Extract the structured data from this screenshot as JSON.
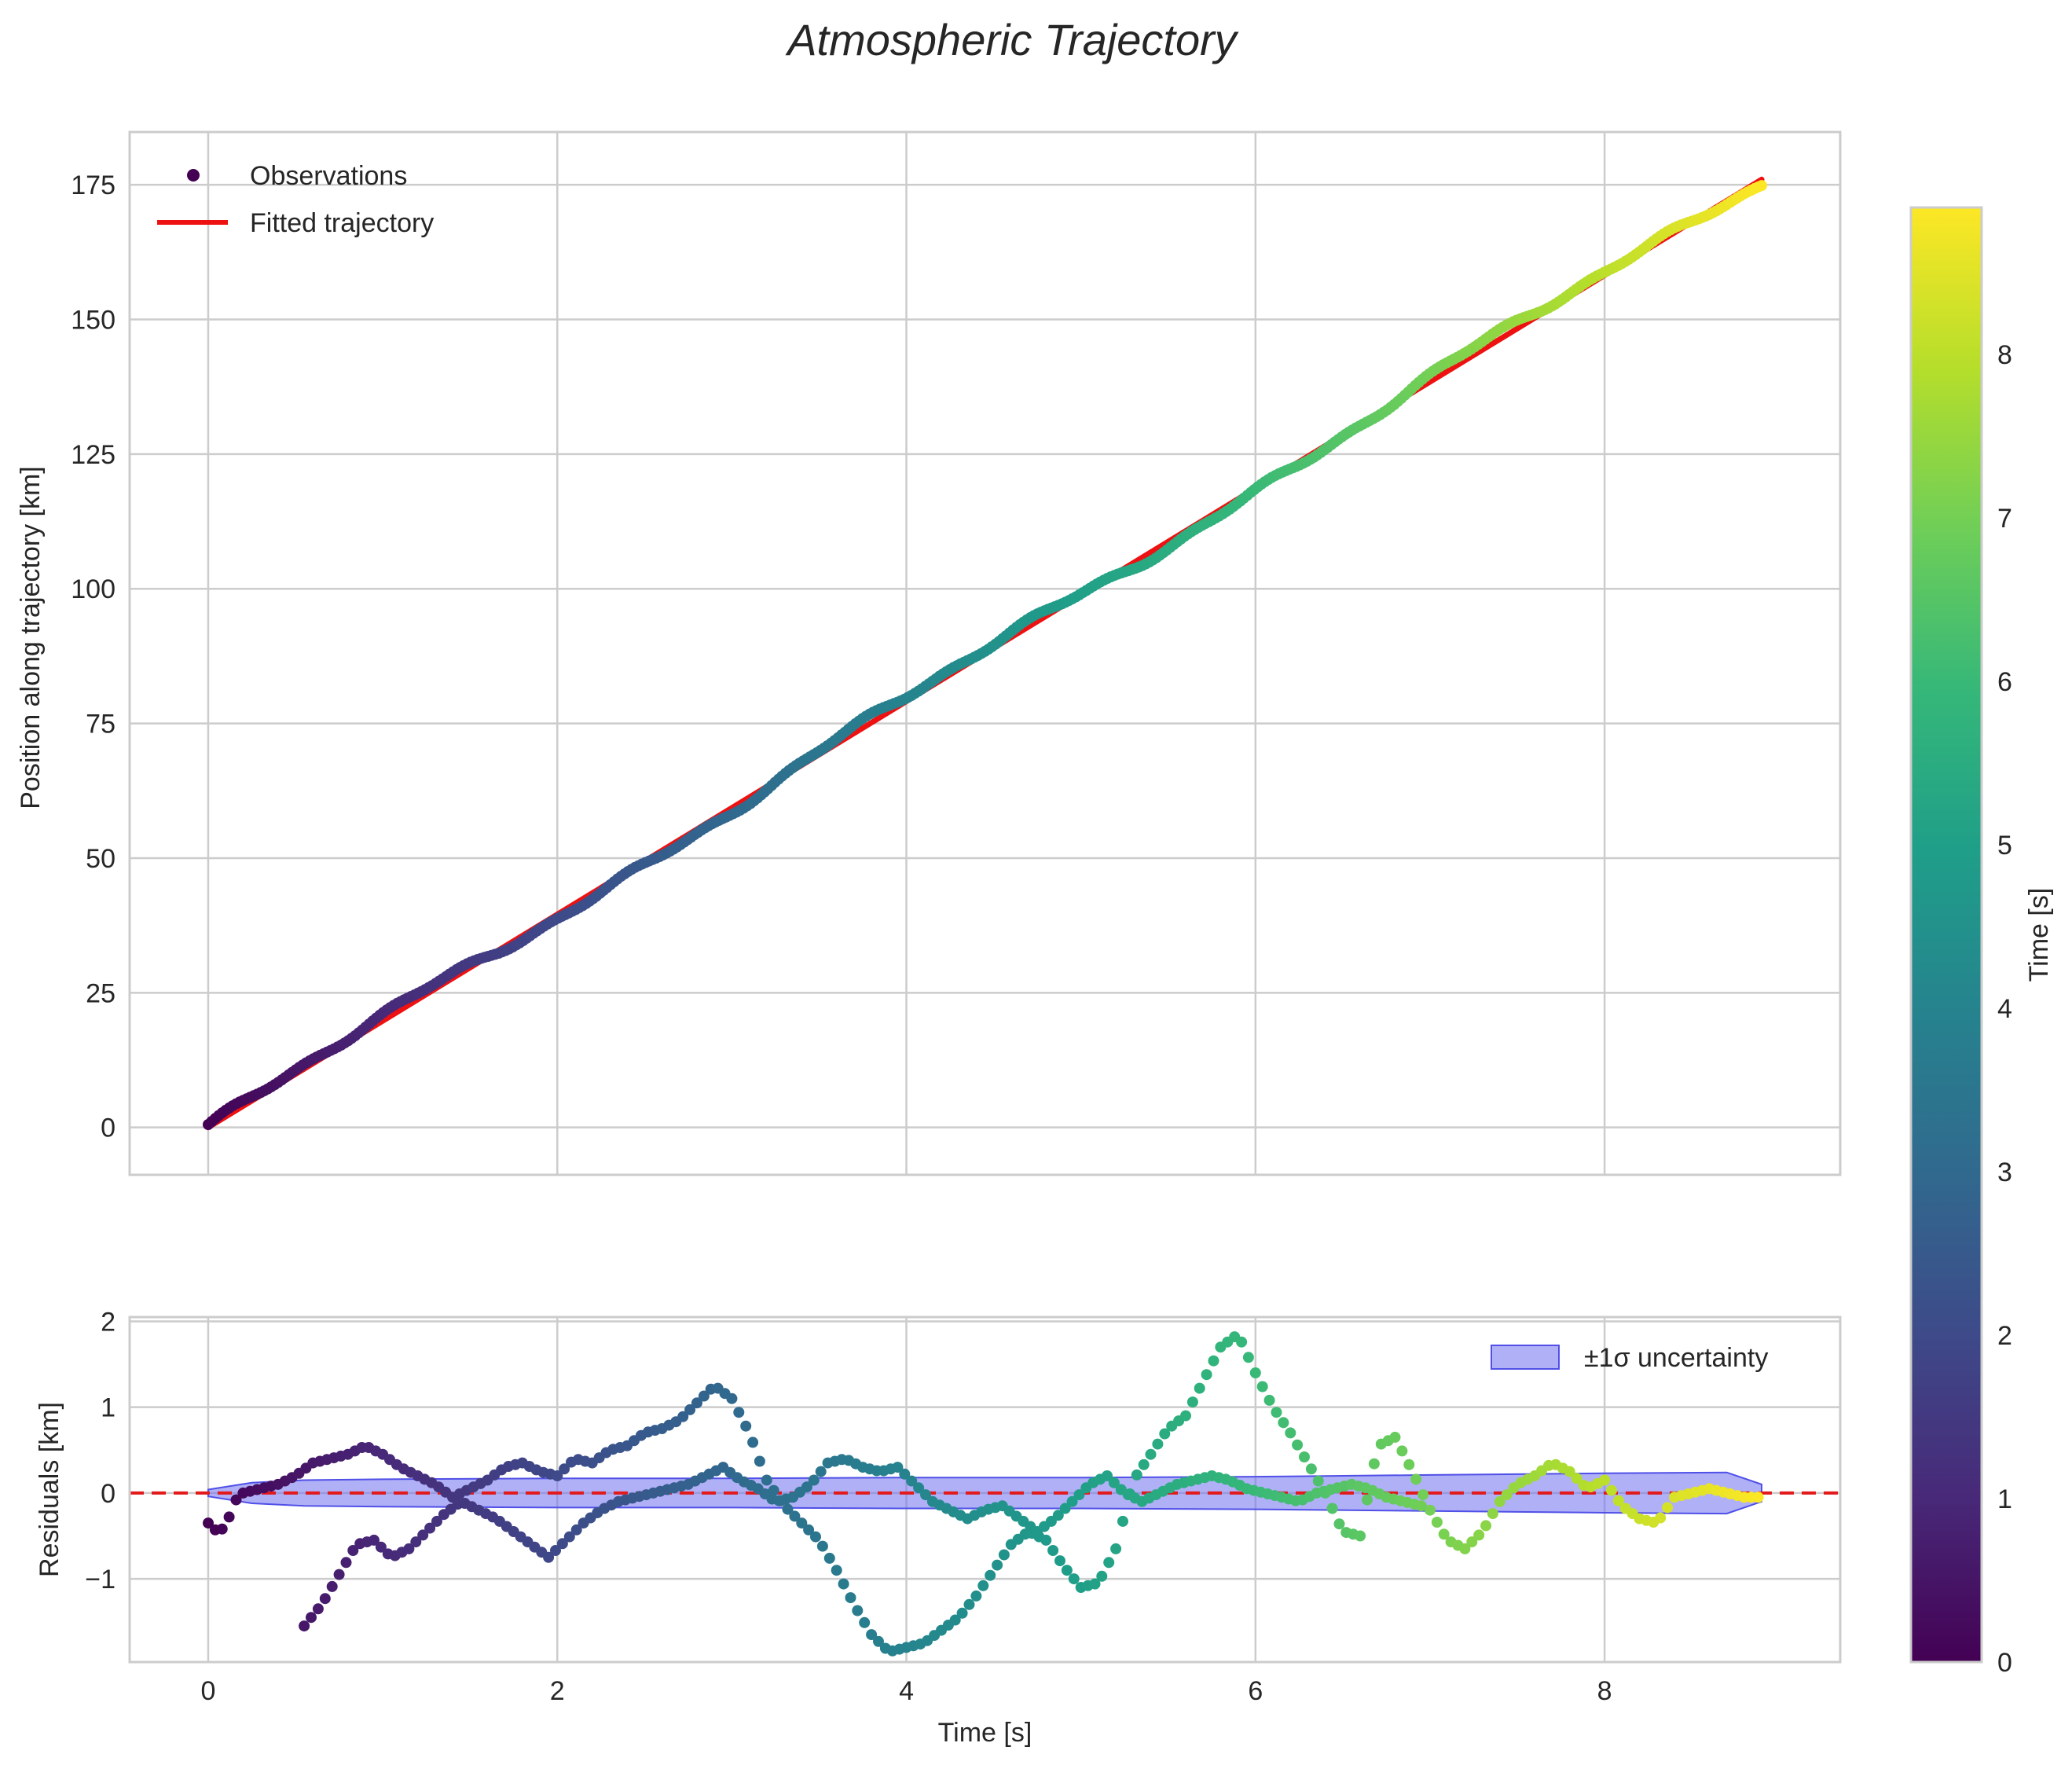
{
  "figure": {
    "title": "Atmospheric Trajectory"
  },
  "colors": {
    "fit_line": "#ee1111",
    "zero_line": "#e31a1c",
    "band_fill": "#7070f0",
    "band_edge": "#5050e8",
    "grid": "#cccccc",
    "axes_edge": "#cccccc",
    "text": "#262626",
    "viridis": [
      "#440154",
      "#482878",
      "#3e4989",
      "#31688e",
      "#26828e",
      "#1f9e89",
      "#35b779",
      "#6ece58",
      "#b5de2b",
      "#fde725"
    ]
  },
  "chart_data": [
    {
      "id": "main",
      "type": "scatter",
      "title": "Atmospheric Trajectory",
      "xlabel": "",
      "ylabel": "Position along trajectory [km]",
      "xlim": [
        -0.45,
        9.35
      ],
      "ylim": [
        -8.8,
        184.8
      ],
      "xticks": [
        0,
        2,
        4,
        6,
        8
      ],
      "xtick_labels_visible": false,
      "yticks": [
        0,
        25,
        50,
        75,
        100,
        125,
        150,
        175
      ],
      "ytick_labels": [
        "0",
        "25",
        "50",
        "75",
        "100",
        "125",
        "150",
        "175"
      ],
      "grid": true,
      "legend": {
        "location": "upper-left",
        "entries": [
          {
            "label": "Observations",
            "kind": "marker"
          },
          {
            "label": "Fitted trajectory",
            "kind": "line"
          }
        ]
      },
      "series": [
        {
          "name": "Observations",
          "kind": "points",
          "t_start": 0.0,
          "t_end": 8.9,
          "n_points": 445,
          "velocity_km_per_s": 19.8,
          "position_at_t0": 0.0,
          "position_at_t_end": 176.0,
          "color_by": "time"
        },
        {
          "name": "Fitted trajectory",
          "kind": "line",
          "x": [
            0.0,
            8.9
          ],
          "y": [
            0.0,
            176.0
          ]
        }
      ]
    },
    {
      "id": "residuals",
      "type": "scatter",
      "xlabel": "Time [s]",
      "ylabel": "Residuals [km]",
      "xlim": [
        -0.45,
        9.35
      ],
      "ylim": [
        -1.97,
        2.05
      ],
      "xticks": [
        0,
        2,
        4,
        6,
        8
      ],
      "xtick_labels": [
        "0",
        "2",
        "4",
        "6",
        "8"
      ],
      "yticks": [
        -1,
        0,
        1,
        2
      ],
      "ytick_labels": [
        "−1",
        "0",
        "1",
        "2"
      ],
      "grid": true,
      "legend": {
        "location": "upper-right",
        "entries": [
          {
            "label": "±1σ uncertainty",
            "kind": "patch"
          }
        ]
      },
      "zero_line": {
        "y": 0,
        "style": "dashed"
      },
      "uncertainty_band": {
        "x": [
          0.0,
          0.25,
          0.55,
          1.0,
          2.0,
          3.0,
          4.0,
          5.0,
          6.0,
          7.0,
          8.0,
          8.7,
          8.9
        ],
        "lower": [
          -0.04,
          -0.12,
          -0.15,
          -0.16,
          -0.17,
          -0.17,
          -0.18,
          -0.18,
          -0.19,
          -0.21,
          -0.23,
          -0.24,
          -0.1
        ],
        "upper": [
          0.04,
          0.12,
          0.15,
          0.16,
          0.17,
          0.17,
          0.18,
          0.18,
          0.19,
          0.21,
          0.23,
          0.24,
          0.1
        ]
      },
      "series": [
        {
          "name": "Residuals upper branch",
          "kind": "points",
          "color_by": "time",
          "x": [
            0.0,
            0.05,
            0.1,
            0.15,
            0.2,
            0.3,
            0.4,
            0.5,
            0.6,
            0.7,
            0.8,
            0.9,
            1.0,
            1.1,
            1.2,
            1.3,
            1.4,
            1.5,
            1.6,
            1.7,
            1.8,
            1.9,
            2.0,
            2.1,
            2.2,
            2.3,
            2.4,
            2.5,
            2.6,
            2.7,
            2.8,
            2.9,
            3.0,
            3.1,
            3.2,
            3.3,
            3.4,
            3.5,
            3.6,
            3.7,
            3.8,
            3.9,
            4.0,
            4.1,
            4.2,
            4.3,
            4.4,
            4.5,
            4.6,
            4.7,
            4.8,
            4.9,
            5.0,
            5.1,
            5.2,
            5.3,
            5.4,
            5.5,
            5.6,
            5.7,
            5.8,
            5.9,
            6.0,
            6.1,
            6.2,
            6.3,
            6.4,
            6.5,
            6.6,
            6.7,
            6.8,
            6.9,
            7.0,
            7.1,
            7.2,
            7.3,
            7.4,
            7.5,
            7.6,
            7.7,
            7.8,
            7.9,
            8.0,
            8.1,
            8.2,
            8.3,
            8.4,
            8.5,
            8.6,
            8.7,
            8.8,
            8.9
          ],
          "y": [
            -0.35,
            -0.45,
            -0.4,
            -0.1,
            0.0,
            0.05,
            0.1,
            0.2,
            0.35,
            0.4,
            0.45,
            0.55,
            0.45,
            0.3,
            0.2,
            0.1,
            -0.05,
            0.05,
            0.15,
            0.3,
            0.35,
            0.25,
            0.2,
            0.4,
            0.35,
            0.5,
            0.55,
            0.7,
            0.75,
            0.85,
            1.05,
            1.25,
            1.1,
            0.7,
            0.15,
            -0.15,
            -0.35,
            -0.55,
            -0.9,
            -1.3,
            -1.65,
            -1.85,
            -1.8,
            -1.75,
            -1.6,
            -1.45,
            -1.2,
            -0.9,
            -0.6,
            -0.45,
            -0.55,
            -0.85,
            -1.1,
            -1.05,
            -0.65,
            0.15,
            0.45,
            0.75,
            0.9,
            1.3,
            1.7,
            1.85,
            1.4,
            1.0,
            0.7,
            0.35,
            0.0,
            -0.45,
            -0.5,
            0.55,
            0.65,
            0.25,
            -0.2,
            -0.55,
            -0.65,
            -0.45,
            -0.1,
            0.1,
            0.2,
            0.35,
            0.25,
            0.05,
            0.15,
            -0.15,
            -0.3,
            -0.35,
            -0.05,
            0.0,
            0.05,
            0.0,
            -0.05,
            -0.05
          ]
        },
        {
          "name": "Residuals lower branch",
          "kind": "points",
          "color_by": "time",
          "x": [
            0.55,
            0.65,
            0.75,
            0.85,
            0.95,
            1.05,
            1.15,
            1.25,
            1.35,
            1.45,
            1.55,
            1.65,
            1.75,
            1.85,
            1.95,
            2.05,
            2.15,
            2.25,
            2.35,
            2.45,
            2.55,
            2.65,
            2.75,
            2.85,
            2.95,
            3.05,
            3.15,
            3.25,
            3.35,
            3.45,
            3.55,
            3.65,
            3.75,
            3.85,
            3.95,
            4.05,
            4.15,
            4.25,
            4.35,
            4.45,
            4.55,
            4.65,
            4.75,
            4.85,
            4.95,
            5.05,
            5.15,
            5.25,
            5.35,
            5.45,
            5.55,
            5.65,
            5.75,
            5.85,
            5.95,
            6.05,
            6.15,
            6.25,
            6.35,
            6.45,
            6.55,
            6.65,
            6.75,
            6.85,
            6.95
          ],
          "y": [
            -1.55,
            -1.3,
            -0.95,
            -0.6,
            -0.55,
            -0.75,
            -0.65,
            -0.45,
            -0.25,
            -0.1,
            -0.2,
            -0.3,
            -0.45,
            -0.6,
            -0.75,
            -0.55,
            -0.35,
            -0.2,
            -0.1,
            -0.05,
            0.0,
            0.05,
            0.1,
            0.2,
            0.3,
            0.15,
            0.05,
            -0.1,
            -0.05,
            0.1,
            0.35,
            0.4,
            0.3,
            0.25,
            0.3,
            0.1,
            -0.1,
            -0.2,
            -0.3,
            -0.2,
            -0.15,
            -0.3,
            -0.45,
            -0.3,
            -0.1,
            0.1,
            0.2,
            0.0,
            -0.1,
            0.0,
            0.1,
            0.15,
            0.2,
            0.15,
            0.05,
            0.0,
            -0.05,
            -0.1,
            0.0,
            0.05,
            0.1,
            0.05,
            -0.05,
            -0.1,
            -0.15
          ]
        }
      ]
    },
    {
      "id": "colorbar",
      "type": "heatmap",
      "label": "Time [s]",
      "range": [
        0,
        8.9
      ],
      "ticks": [
        0,
        1,
        2,
        3,
        4,
        5,
        6,
        7,
        8
      ],
      "tick_labels": [
        "0",
        "1",
        "2",
        "3",
        "4",
        "5",
        "6",
        "7",
        "8"
      ]
    }
  ]
}
